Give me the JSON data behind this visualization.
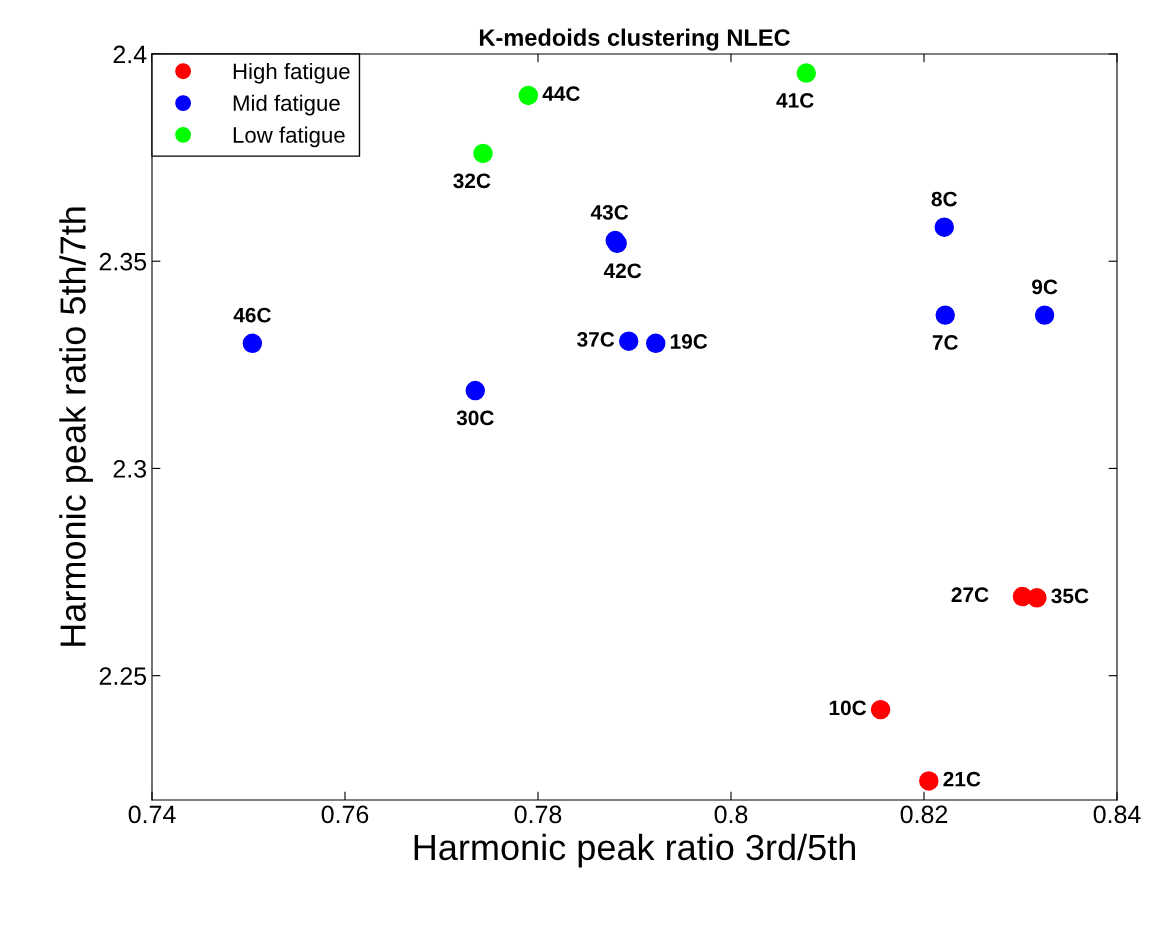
{
  "chart_data": {
    "type": "scatter",
    "title": "K-medoids clustering NLEC",
    "xlabel": "Harmonic peak ratio 3rd/5th",
    "ylabel": "Harmonic peak ratio 5th/7th",
    "xlim": [
      0.74,
      0.84
    ],
    "xticks": [
      0.74,
      0.76,
      0.78,
      0.8,
      0.82,
      0.84
    ],
    "ylim": [
      2.22,
      2.4
    ],
    "yticks": [
      2.25,
      2.3,
      2.35,
      2.4
    ],
    "grid": false,
    "legend": "top left",
    "marker": "circle",
    "series": [
      {
        "name": "High fatigue",
        "color": "#ff0000",
        "x": [
          0.8302,
          0.8317,
          0.8155,
          0.8205
        ],
        "values": [
          2.2691,
          2.2688,
          2.2418,
          2.2246
        ]
      },
      {
        "name": "Mid fatigue",
        "color": "#0000ff",
        "x": [
          0.788,
          0.7882,
          0.8221,
          0.8325,
          0.8222,
          0.7504,
          0.7894,
          0.7922,
          0.7735
        ],
        "values": [
          2.355,
          2.3543,
          2.3582,
          2.337,
          2.337,
          2.3302,
          2.3307,
          2.3302,
          2.3188
        ]
      },
      {
        "name": "Low fatigue",
        "color": "#00ff00",
        "x": [
          0.8078,
          0.779,
          0.7743
        ],
        "values": [
          2.3954,
          2.39,
          2.376
        ]
      }
    ],
    "annotations": [
      {
        "text": "27C",
        "x": 0.8302,
        "y": 2.2691
      },
      {
        "text": "35C",
        "x": 0.8317,
        "y": 2.2688
      },
      {
        "text": "10C",
        "x": 0.8155,
        "y": 2.2418
      },
      {
        "text": "21C",
        "x": 0.8205,
        "y": 2.2246
      },
      {
        "text": "43C",
        "x": 0.788,
        "y": 2.355
      },
      {
        "text": "42C",
        "x": 0.7882,
        "y": 2.3543
      },
      {
        "text": "8C",
        "x": 0.8221,
        "y": 2.3582
      },
      {
        "text": "9C",
        "x": 0.8325,
        "y": 2.337
      },
      {
        "text": "7C",
        "x": 0.8222,
        "y": 2.337
      },
      {
        "text": "46C",
        "x": 0.7504,
        "y": 2.3302
      },
      {
        "text": "37C",
        "x": 0.7894,
        "y": 2.3307
      },
      {
        "text": "19C",
        "x": 0.7922,
        "y": 2.3302
      },
      {
        "text": "30C",
        "x": 0.7735,
        "y": 2.3188
      },
      {
        "text": "41C",
        "x": 0.8078,
        "y": 2.3954
      },
      {
        "text": "44C",
        "x": 0.779,
        "y": 2.39
      },
      {
        "text": "32C",
        "x": 0.7743,
        "y": 2.376
      }
    ]
  }
}
